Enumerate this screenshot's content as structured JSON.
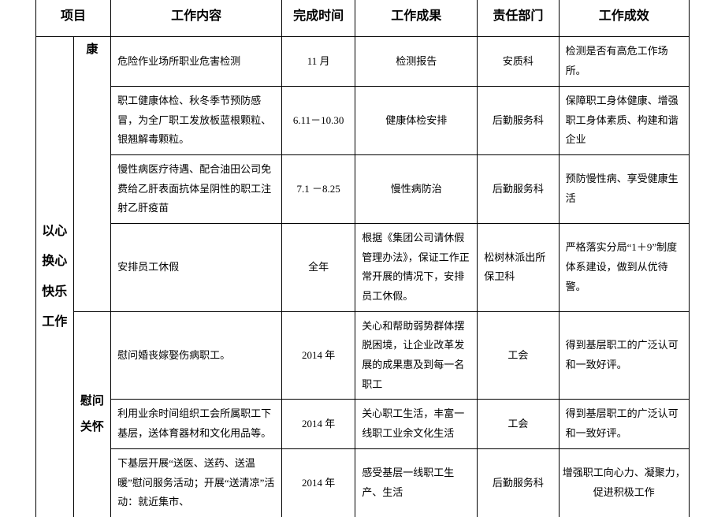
{
  "headers": {
    "project": "项目",
    "content": "工作内容",
    "time": "完成时间",
    "result": "工作成果",
    "dept": "责任部门",
    "effect": "工作成效"
  },
  "project_outer_lines": [
    "以心",
    "换心",
    "",
    "快乐",
    "工作"
  ],
  "project_inner_top": "康",
  "project_inner_bottom_lines": [
    "慰问",
    "关怀"
  ],
  "rows": [
    {
      "content": "危险作业场所职业危害检测",
      "time": "11 月",
      "result": "检测报告",
      "dept": "安质科",
      "effect": "检测是否有高危工作场所。"
    },
    {
      "content": "职工健康体检、秋冬季节预防感冒，为全厂职工发放板蓝根颗粒、银翘解毒颗粒。",
      "time": "6.11－10.30",
      "result": "健康体检安排",
      "dept": "后勤服务科",
      "effect": "保障职工身体健康、增强职工身体素质、构建和谐企业"
    },
    {
      "content": "慢性病医疗待遇、配合油田公司免费给乙肝表面抗体呈阴性的职工注射乙肝疫苗",
      "time": "7.1 －8.25",
      "result": "慢性病防治",
      "dept": "后勤服务科",
      "effect": "预防慢性病、享受健康生活"
    },
    {
      "content": "安排员工休假",
      "time": "全年",
      "result": "根据《集团公司请休假管理办法》，保证工作正常开展的情况下，安排员工休假。",
      "dept": "松树林派出所保卫科",
      "effect": "严格落实分局“1＋9”制度体系建设，做到从优待警。"
    },
    {
      "content": "慰问婚丧嫁娶伤病职工。",
      "time": "2014 年",
      "result": "关心和帮助弱势群体摆脱困境，让企业改革发展的成果惠及到每一名职工",
      "dept": "工会",
      "effect": "得到基层职工的广泛认可和一致好评。"
    },
    {
      "content": "利用业余时间组织工会所属职工下基层，送体育器材和文化用品等。",
      "time": "2014 年",
      "result": "关心职工生活，丰富一线职工业余文化生活",
      "dept": "工会",
      "effect": "得到基层职工的广泛认可和一致好评。"
    },
    {
      "content": "下基层开展“送医、送药、送温暖”慰问服务活动；开展“送清凉”活动：就近集市、",
      "time": "2014 年",
      "result": "感受基层一线职工生产、生活",
      "dept": "后勤服务科",
      "effect": "增强职工向心力、凝聚力，促进积极工作"
    }
  ]
}
